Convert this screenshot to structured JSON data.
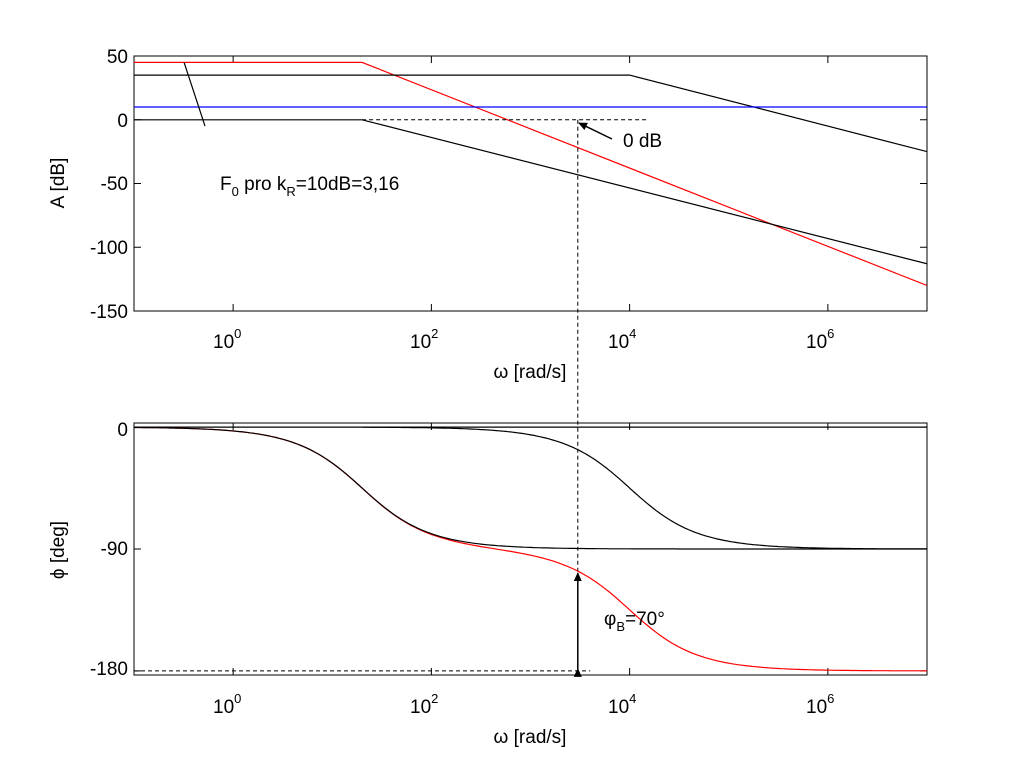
{
  "chart_data": [
    {
      "type": "line",
      "xscale": "log",
      "xlabel": "ω [rad/s]",
      "ylabel": "A [dB]",
      "xlim": [
        0.1,
        10000000
      ],
      "ylim": [
        -150,
        50
      ],
      "x_ticks": [
        {
          "base": "10",
          "exp": "0",
          "value": 1
        },
        {
          "base": "10",
          "exp": "2",
          "value": 100
        },
        {
          "base": "10",
          "exp": "4",
          "value": 10000
        },
        {
          "base": "10",
          "exp": "6",
          "value": 1000000
        }
      ],
      "y_ticks": [
        "50",
        "0",
        "-50",
        "-100",
        "-150"
      ],
      "y_tick_values": [
        50,
        0,
        -50,
        -100,
        -150
      ],
      "grid": false,
      "series": [
        {
          "color": "#ff0000",
          "x": [
            0.1,
            20,
            10000000
          ],
          "y": [
            45,
            45,
            -130
          ]
        },
        {
          "color": "#000000",
          "x": [
            0.1,
            10000,
            10000000
          ],
          "y": [
            35,
            35,
            -25
          ]
        },
        {
          "color": "#000000",
          "x": [
            0.1,
            20,
            10000000
          ],
          "y": [
            0,
            0,
            -113
          ]
        },
        {
          "color": "#0000ff",
          "x": [
            0.1,
            10000000
          ],
          "y": [
            10,
            10
          ]
        },
        {
          "color": "#000000",
          "x": [
            0.32,
            0.52
          ],
          "y": [
            45,
            -5
          ]
        }
      ],
      "reference_lines": [
        {
          "style": "dashed",
          "x": [
            20,
            15000
          ],
          "y": [
            0,
            0
          ]
        }
      ],
      "annotations": {
        "zero_db": "0 dB",
        "f0_main": "F",
        "f0_sub": "0",
        "f0_mid": " pro k",
        "f0_sub2": "R",
        "f0_tail": "=10dB=3,16"
      }
    },
    {
      "type": "line",
      "xscale": "log",
      "xlabel": "ω [rad/s]",
      "ylabel": "ϕ [deg]",
      "xlim": [
        0.1,
        10000000
      ],
      "ylim": [
        -183,
        3
      ],
      "x_ticks": [
        {
          "base": "10",
          "exp": "0",
          "value": 1
        },
        {
          "base": "10",
          "exp": "2",
          "value": 100
        },
        {
          "base": "10",
          "exp": "4",
          "value": 10000
        },
        {
          "base": "10",
          "exp": "6",
          "value": 1000000
        }
      ],
      "y_ticks": [
        "0",
        "-90",
        "-180"
      ],
      "y_tick_values": [
        0,
        -90,
        -180
      ],
      "grid": false,
      "series": [
        {
          "color": "#ff0000",
          "model": "two_poles",
          "poles": [
            20,
            10000
          ]
        },
        {
          "color": "#000000",
          "model": "one_pole",
          "pole": 20
        },
        {
          "color": "#000000",
          "model": "one_pole_from",
          "pole": 10000,
          "x_start": 20
        },
        {
          "color": "#000000",
          "model": "constant",
          "y": 0
        }
      ],
      "reference_lines": [
        {
          "style": "dashed",
          "x": [
            0.1,
            4000
          ],
          "y": [
            -180,
            -180
          ]
        }
      ],
      "annotations": {
        "phase_margin_main": "φ",
        "phase_margin_sub": "B",
        "phase_margin_tail": "=70°"
      }
    }
  ],
  "crossover": {
    "omega": 3000
  }
}
